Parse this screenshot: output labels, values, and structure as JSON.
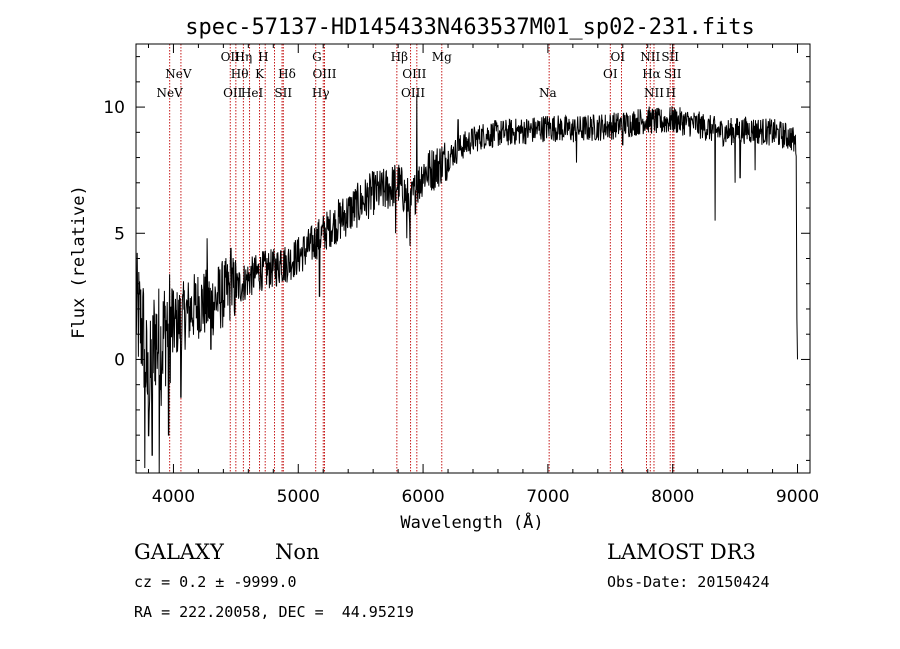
{
  "chart_data": {
    "type": "line",
    "title": "spec-57137-HD145433N463537M01_sp02-231.fits",
    "xlabel": "Wavelength (Å)",
    "ylabel": "Flux (relative)",
    "xlim": [
      3700,
      9100
    ],
    "ylim": [
      -4.5,
      12.5
    ],
    "xticks": [
      4000,
      5000,
      6000,
      7000,
      8000,
      9000
    ],
    "yticks": [
      0,
      5,
      10
    ],
    "colors": {
      "spectrum": "#000000",
      "lines": "#c00000"
    },
    "spectrum_keypoints": [
      [
        3700,
        2.0
      ],
      [
        3760,
        1.0
      ],
      [
        3800,
        -1.5
      ],
      [
        3850,
        1.0
      ],
      [
        3900,
        0.5
      ],
      [
        3950,
        1.5
      ],
      [
        4000,
        1.3
      ],
      [
        4100,
        1.8
      ],
      [
        4200,
        2.2
      ],
      [
        4300,
        2.2
      ],
      [
        4400,
        2.6
      ],
      [
        4500,
        2.8
      ],
      [
        4600,
        3.2
      ],
      [
        4700,
        3.5
      ],
      [
        4800,
        3.6
      ],
      [
        4900,
        3.8
      ],
      [
        5000,
        4.1
      ],
      [
        5100,
        4.5
      ],
      [
        5200,
        5.0
      ],
      [
        5300,
        5.4
      ],
      [
        5400,
        5.8
      ],
      [
        5500,
        6.2
      ],
      [
        5600,
        6.6
      ],
      [
        5700,
        6.7
      ],
      [
        5800,
        7.0
      ],
      [
        5900,
        6.2
      ],
      [
        6000,
        7.4
      ],
      [
        6100,
        7.6
      ],
      [
        6200,
        8.0
      ],
      [
        6300,
        8.4
      ],
      [
        6400,
        8.7
      ],
      [
        6500,
        8.9
      ],
      [
        6700,
        9.0
      ],
      [
        6900,
        9.1
      ],
      [
        7000,
        9.2
      ],
      [
        7200,
        9.1
      ],
      [
        7400,
        9.2
      ],
      [
        7600,
        9.3
      ],
      [
        7800,
        9.5
      ],
      [
        7900,
        9.4
      ],
      [
        8000,
        9.5
      ],
      [
        8200,
        9.3
      ],
      [
        8400,
        9.0
      ],
      [
        8600,
        9.1
      ],
      [
        8800,
        9.0
      ],
      [
        8950,
        8.8
      ],
      [
        9000,
        8.4
      ]
    ],
    "spectrum_features": [
      {
        "x": 3770,
        "y": -4.3
      },
      {
        "x": 3830,
        "y": -3.8
      },
      {
        "x": 3885,
        "y": -4.5
      },
      {
        "x": 3960,
        "y": -3.0
      },
      {
        "x": 4060,
        "y": -1.5
      },
      {
        "x": 4270,
        "y": 4.8
      },
      {
        "x": 4300,
        "y": 0.4
      },
      {
        "x": 4460,
        "y": 4.4
      },
      {
        "x": 4860,
        "y": 4.3
      },
      {
        "x": 5170,
        "y": 2.5
      },
      {
        "x": 5780,
        "y": 5.0
      },
      {
        "x": 5870,
        "y": 4.8
      },
      {
        "x": 5895,
        "y": 4.5
      },
      {
        "x": 5950,
        "y": 10.5
      },
      {
        "x": 6280,
        "y": 9.5
      },
      {
        "x": 7230,
        "y": 7.8
      },
      {
        "x": 7600,
        "y": 8.5
      },
      {
        "x": 8340,
        "y": 5.5
      },
      {
        "x": 8500,
        "y": 7.0
      },
      {
        "x": 8540,
        "y": 7.2
      },
      {
        "x": 8660,
        "y": 7.5
      },
      {
        "x": 8995,
        "y": 1.6
      },
      {
        "x": 9000,
        "y": 0.0
      }
    ],
    "line_markers": [
      {
        "label": "NeV",
        "x": 3970,
        "row": 0
      },
      {
        "label": "NeV",
        "x": 4040,
        "row": 1
      },
      {
        "label": "OII",
        "x": 4455,
        "row": 2
      },
      {
        "label": "OII",
        "x": 4475,
        "row": 0
      },
      {
        "label": "Hη",
        "x": 4560,
        "row": 2
      },
      {
        "label": "Hθ",
        "x": 4530,
        "row": 1
      },
      {
        "label": "HeI",
        "x": 4630,
        "row": 0
      },
      {
        "label": "H",
        "x": 4720,
        "row": 2
      },
      {
        "label": "K",
        "x": 4690,
        "row": 1
      },
      {
        "label": "SII",
        "x": 4880,
        "row": 0
      },
      {
        "label": "Hδ",
        "x": 4910,
        "row": 1
      },
      {
        "label": "G",
        "x": 5150,
        "row": 2
      },
      {
        "label": "OIII",
        "x": 5210,
        "row": 1
      },
      {
        "label": "Hγ",
        "x": 5180,
        "row": 0
      },
      {
        "label": "Hβ",
        "x": 5810,
        "row": 2
      },
      {
        "label": "OIII",
        "x": 5930,
        "row": 1
      },
      {
        "label": "OIII",
        "x": 5920,
        "row": 0
      },
      {
        "label": "Mg",
        "x": 6150,
        "row": 2
      },
      {
        "label": "Na",
        "x": 7000,
        "row": 0
      },
      {
        "label": "OI",
        "x": 7560,
        "row": 2
      },
      {
        "label": "OI",
        "x": 7500,
        "row": 1
      },
      {
        "label": "NII",
        "x": 7820,
        "row": 2
      },
      {
        "label": "Hα",
        "x": 7830,
        "row": 1
      },
      {
        "label": "NII",
        "x": 7850,
        "row": 0
      },
      {
        "label": "SII",
        "x": 7980,
        "row": 2
      },
      {
        "label": "SII",
        "x": 8000,
        "row": 1
      },
      {
        "label": "H",
        "x": 7985,
        "row": 0
      }
    ],
    "line_positions": [
      3970,
      4060,
      4455,
      4500,
      4560,
      4610,
      4690,
      4735,
      4810,
      4870,
      4880,
      5140,
      5200,
      5210,
      5790,
      5900,
      5950,
      6150,
      7010,
      7500,
      7590,
      7790,
      7820,
      7850,
      7980,
      8000,
      8010
    ]
  },
  "info": {
    "object_class": "GALAXY",
    "subclass": "Non",
    "survey": "LAMOST DR3",
    "cz": "cz = 0.2 ± -9999.0",
    "obs_date": "Obs-Date: 20150424",
    "coords": "RA = 222.20058, DEC =  44.95219"
  }
}
